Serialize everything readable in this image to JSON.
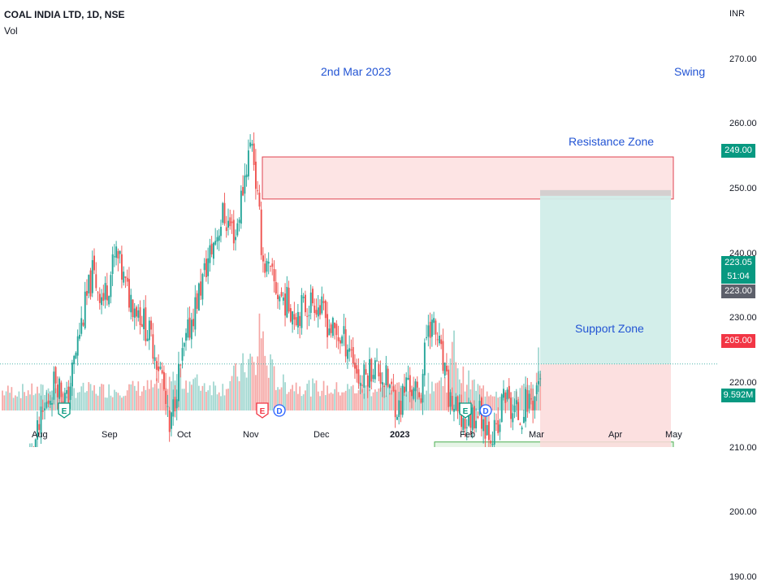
{
  "header": {
    "title": "COAL INDIA LTD, 1D, NSE",
    "vol_label": "Vol",
    "currency": "INR"
  },
  "annotations": {
    "date_note": "2nd Mar 2023",
    "style_note": "Swing",
    "resistance_label": "Resistance Zone",
    "support_label": "Support Zone"
  },
  "price_tags": {
    "target": "249.00",
    "last": "223.05",
    "countdown": "51:04",
    "entry": "223.00",
    "stop": "205.00",
    "volume": "9.592M"
  },
  "colors": {
    "up": "#26a69a",
    "down": "#ef5350",
    "vol_up": "#9fd6cf",
    "vol_down": "#f5a6a4",
    "annotation": "#2254d4",
    "target_zone": "#d1ede9",
    "stop_zone": "#fbdada",
    "resistance_fill": "#fde4e4",
    "resistance_border": "#e0424f",
    "support_fill": "#e6f4e6",
    "support_border": "#4caf50"
  },
  "event_markers": [
    {
      "letter": "E",
      "type": "earnings"
    },
    {
      "letter": "E",
      "type": "earnings"
    },
    {
      "letter": "D",
      "type": "dividend"
    },
    {
      "letter": "E",
      "type": "earnings"
    },
    {
      "letter": "D",
      "type": "dividend"
    }
  ],
  "chart_data": {
    "type": "candlestick",
    "title": "COAL INDIA LTD, 1D, NSE",
    "y_axis_side": "right",
    "ylim": [
      190,
      275
    ],
    "y_ticks": [
      "270.00",
      "260.00",
      "250.00",
      "240.00",
      "230.00",
      "220.00",
      "210.00",
      "200.00",
      "190.00"
    ],
    "x_ticks": [
      "Aug",
      "Sep",
      "Oct",
      "Nov",
      "Dec",
      "2023",
      "Feb",
      "Mar",
      "Apr",
      "May"
    ],
    "last_price": 223.05,
    "long_position": {
      "entry": 223.0,
      "target": 249.0,
      "stop": 205.0
    },
    "resistance_zone": [
      248.5,
      255.0
    ],
    "support_zone": [
      205.0,
      211.0
    ],
    "price_path": [
      [
        0,
        202
      ],
      [
        8,
        204
      ],
      [
        15,
        208
      ],
      [
        22,
        215
      ],
      [
        29,
        221
      ],
      [
        35,
        217
      ],
      [
        42,
        228
      ],
      [
        49,
        237
      ],
      [
        55,
        233
      ],
      [
        62,
        240
      ],
      [
        68,
        234
      ],
      [
        75,
        231
      ],
      [
        82,
        226
      ],
      [
        87,
        221
      ],
      [
        91,
        212
      ],
      [
        95,
        220
      ],
      [
        103,
        230
      ],
      [
        112,
        239
      ],
      [
        120,
        246
      ],
      [
        127,
        243
      ],
      [
        133,
        254
      ],
      [
        136,
        258
      ],
      [
        139,
        248
      ],
      [
        142,
        239
      ],
      [
        150,
        234
      ],
      [
        160,
        231
      ],
      [
        170,
        233
      ],
      [
        180,
        228
      ],
      [
        189,
        226
      ],
      [
        195,
        220
      ],
      [
        202,
        223
      ],
      [
        210,
        220
      ],
      [
        216,
        216
      ],
      [
        221,
        221
      ],
      [
        224,
        218
      ],
      [
        228,
        219
      ],
      [
        232,
        230
      ],
      [
        237,
        227
      ],
      [
        243,
        218
      ],
      [
        248,
        215
      ],
      [
        252,
        214
      ],
      [
        259,
        216
      ],
      [
        265,
        213
      ],
      [
        270,
        212
      ],
      [
        273,
        219
      ],
      [
        277,
        216
      ],
      [
        282,
        215
      ],
      [
        285,
        217
      ],
      [
        290,
        218
      ],
      [
        293,
        222
      ]
    ],
    "volume_path": [
      [
        0,
        3.2
      ],
      [
        60,
        3.5
      ],
      [
        87,
        4.0
      ],
      [
        90,
        5.5
      ],
      [
        120,
        3.8
      ],
      [
        136,
        8.5
      ],
      [
        138,
        5.5
      ],
      [
        140,
        15.5
      ],
      [
        143,
        9.0
      ],
      [
        150,
        4.5
      ],
      [
        180,
        3.5
      ],
      [
        215,
        3.8
      ],
      [
        243,
        5.0
      ],
      [
        245,
        9.5
      ],
      [
        247,
        11.0
      ],
      [
        249,
        6.0
      ],
      [
        260,
        3.5
      ],
      [
        275,
        3.0
      ],
      [
        290,
        3.8
      ],
      [
        293,
        9.592
      ]
    ]
  }
}
